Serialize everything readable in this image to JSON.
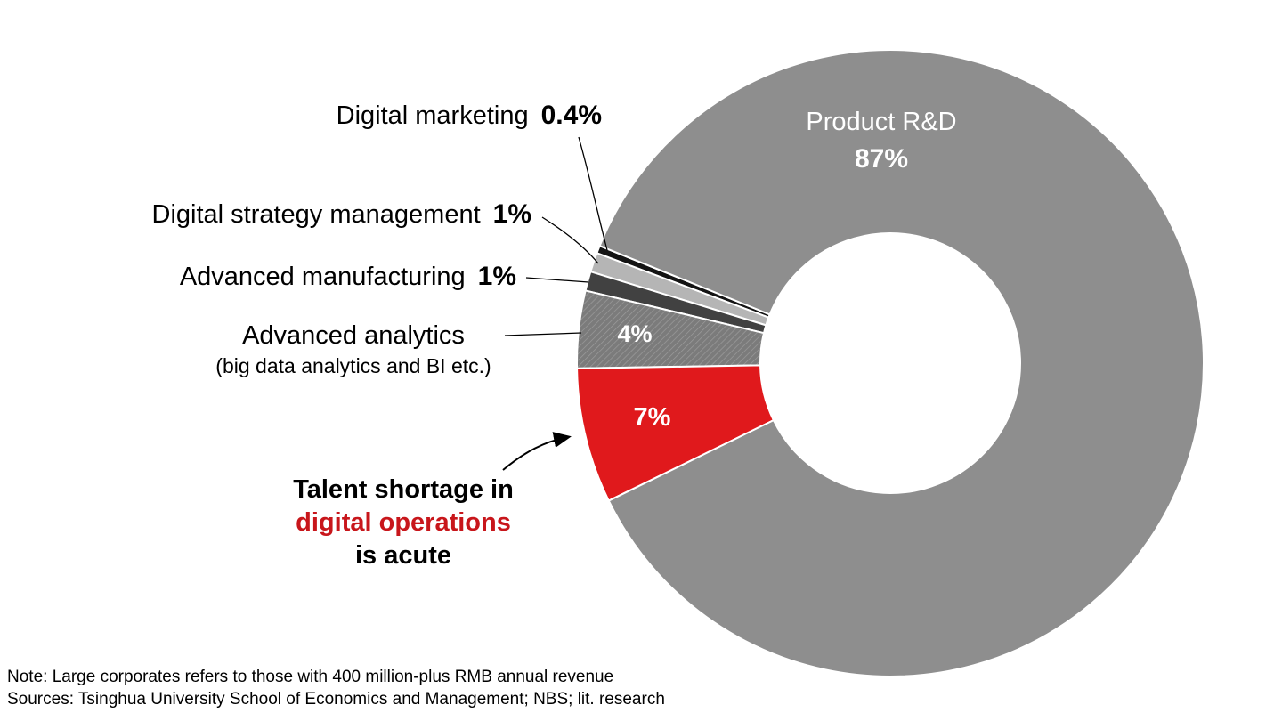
{
  "chart_data": {
    "type": "donut",
    "legend_position": "none",
    "grid": false,
    "start_angle_deg": 158,
    "draw_order": [
      1,
      2,
      3,
      4,
      5,
      0
    ],
    "series": [
      {
        "label": "Product R&D",
        "value": 87,
        "display": "87%",
        "color": "#8e8e8e",
        "text_color": "#ffffff"
      },
      {
        "label": "Digital marketing",
        "value": 0.4,
        "display": "0.4%",
        "color": "#141414"
      },
      {
        "label": "Digital strategy management",
        "value": 1,
        "display": "1%",
        "color": "#b5b5b5"
      },
      {
        "label": "Advanced manufacturing",
        "value": 1,
        "display": "1%",
        "color": "#414141"
      },
      {
        "label": "Advanced analytics",
        "sublabel": "(big data analytics and BI etc.)",
        "value": 4,
        "display": "4%",
        "color": "#7b7b7b",
        "hatch": true
      },
      {
        "label": "Digital operations",
        "value": 7,
        "display": "7%",
        "color": "#e0191c"
      }
    ]
  },
  "colors": {
    "accent_red": "#e0191c",
    "text_red": "#c8161b",
    "main_gray": "#8e8e8e"
  },
  "annotation": {
    "line1": "Talent shortage in",
    "line2": "digital operations",
    "line3": "is acute"
  },
  "notes": {
    "note": "Note: Large corporates refers to those with 400 million-plus RMB annual revenue",
    "sources": "Sources: Tsinghua University School of Economics and Management; NBS; lit. research"
  }
}
